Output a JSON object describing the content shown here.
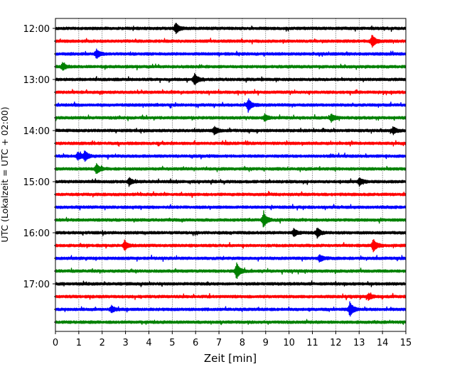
{
  "chart_data": {
    "type": "line",
    "subtype": "helicorder-seismogram",
    "title": "",
    "xlabel": "Zeit  [min]",
    "ylabel": "UTC (Lokalzeit = UTC + 02:00)",
    "xlim": [
      0,
      15
    ],
    "x_ticks": [
      0,
      1,
      2,
      3,
      4,
      5,
      6,
      7,
      8,
      9,
      10,
      11,
      12,
      13,
      14,
      15
    ],
    "x_tick_labels": [
      "0",
      "1",
      "2",
      "3",
      "4",
      "5",
      "6",
      "7",
      "8",
      "9",
      "10",
      "11",
      "12",
      "13",
      "14",
      "15"
    ],
    "y_tick_labels": [
      "12:00",
      "13:00",
      "14:00",
      "15:00",
      "16:00",
      "17:00"
    ],
    "trace_interval_min": 15,
    "grid": "vertical dotted lines at each minute",
    "trace_colors": [
      "#000000",
      "#ff0000",
      "#0000ff",
      "#008000"
    ],
    "traces": [
      {
        "start": "12:00",
        "color": "#000000",
        "events": [
          [
            5.15,
            2.2
          ]
        ]
      },
      {
        "start": "12:15",
        "color": "#ff0000",
        "events": [
          [
            13.55,
            2.6
          ]
        ]
      },
      {
        "start": "12:30",
        "color": "#0000ff",
        "events": [
          [
            1.75,
            1.8
          ]
        ]
      },
      {
        "start": "12:45",
        "color": "#008000",
        "events": [
          [
            0.3,
            1.4
          ]
        ]
      },
      {
        "start": "13:00",
        "color": "#000000",
        "events": [
          [
            5.95,
            2.4
          ]
        ]
      },
      {
        "start": "13:15",
        "color": "#ff0000",
        "events": []
      },
      {
        "start": "13:30",
        "color": "#0000ff",
        "events": [
          [
            8.25,
            2.6
          ]
        ]
      },
      {
        "start": "13:45",
        "color": "#008000",
        "events": [
          [
            11.8,
            1.5
          ],
          [
            8.95,
            1.3
          ]
        ]
      },
      {
        "start": "14:00",
        "color": "#000000",
        "events": [
          [
            6.8,
            1.5
          ],
          [
            14.45,
            1.4
          ]
        ]
      },
      {
        "start": "14:15",
        "color": "#ff0000",
        "events": []
      },
      {
        "start": "14:30",
        "color": "#0000ff",
        "events": [
          [
            1.25,
            2.0
          ],
          [
            0.95,
            1.6
          ]
        ]
      },
      {
        "start": "14:45",
        "color": "#008000",
        "events": [
          [
            1.75,
            2.0
          ]
        ]
      },
      {
        "start": "15:00",
        "color": "#000000",
        "events": [
          [
            3.15,
            1.5
          ],
          [
            13.0,
            1.5
          ]
        ]
      },
      {
        "start": "15:15",
        "color": "#ff0000",
        "events": []
      },
      {
        "start": "15:30",
        "color": "#0000ff",
        "events": []
      },
      {
        "start": "15:45",
        "color": "#008000",
        "events": [
          [
            8.9,
            3.2
          ]
        ]
      },
      {
        "start": "16:00",
        "color": "#000000",
        "events": [
          [
            11.2,
            2.0
          ],
          [
            10.2,
            1.4
          ]
        ]
      },
      {
        "start": "16:15",
        "color": "#ff0000",
        "events": [
          [
            2.95,
            2.0
          ],
          [
            13.6,
            2.6
          ]
        ]
      },
      {
        "start": "16:30",
        "color": "#0000ff",
        "events": [
          [
            11.3,
            1.4
          ]
        ]
      },
      {
        "start": "16:45",
        "color": "#008000",
        "events": [
          [
            7.75,
            3.4
          ]
        ]
      },
      {
        "start": "17:00",
        "color": "#000000",
        "events": []
      },
      {
        "start": "17:15",
        "color": "#ff0000",
        "events": [
          [
            13.4,
            1.3
          ]
        ]
      },
      {
        "start": "17:30",
        "color": "#0000ff",
        "events": [
          [
            12.6,
            3.0
          ],
          [
            2.4,
            1.3
          ]
        ]
      },
      {
        "start": "17:45",
        "color": "#008000",
        "events": []
      }
    ]
  }
}
